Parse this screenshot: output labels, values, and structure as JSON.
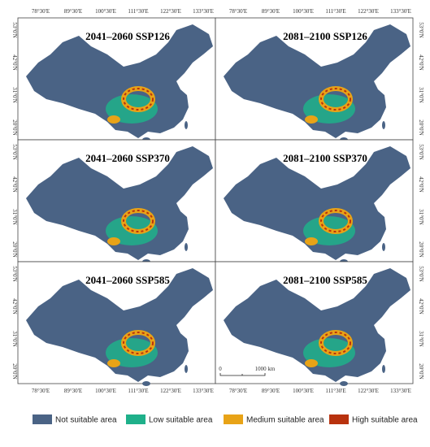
{
  "panels": [
    {
      "title": "2041–2060 SSP126"
    },
    {
      "title": "2081–2100 SSP126"
    },
    {
      "title": "2041–2060 SSP370"
    },
    {
      "title": "2081–2100 SSP370"
    },
    {
      "title": "2041–2060 SSP585"
    },
    {
      "title": "2081–2100 SSP585"
    }
  ],
  "lon_labels": [
    "78°30'E",
    "89°30'E",
    "100°30'E",
    "111°30'E",
    "122°30'E",
    "133°30'E"
  ],
  "lat_labels": [
    "53°0'N",
    "42°0'N",
    "31°0'N",
    "20°0'N"
  ],
  "scale_bar": [
    "0",
    "1000 km"
  ],
  "legend": [
    {
      "name": "Not suitable area",
      "color": "#4a6385"
    },
    {
      "name": "Low suitable area",
      "color": "#1fb08a"
    },
    {
      "name": "Medium suitable area",
      "color": "#e8a317"
    },
    {
      "name": "High suitable area",
      "color": "#b8320e"
    }
  ]
}
